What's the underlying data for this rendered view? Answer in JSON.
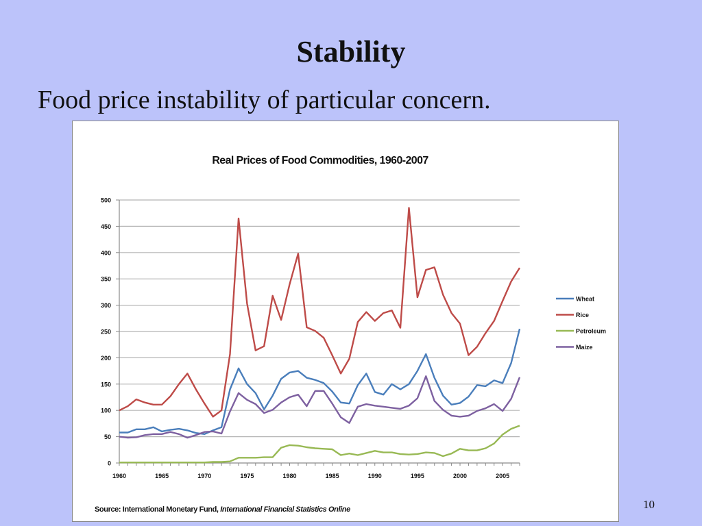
{
  "slide": {
    "title": "Stability",
    "subtitle": "Food price instability of particular concern.",
    "page_number": "10"
  },
  "chart_data": {
    "type": "line",
    "title": "Real Prices of Food Commodities, 1960-2007",
    "source_prefix": "Source: International Monetary Fund, ",
    "source_italic": "International Financial Statistics Online",
    "xlabel": "",
    "ylabel": "",
    "xlim": [
      1960,
      2007
    ],
    "ylim": [
      0,
      500
    ],
    "yticks": [
      0,
      50,
      100,
      150,
      200,
      250,
      300,
      350,
      400,
      450,
      500
    ],
    "xticks": [
      1960,
      1965,
      1970,
      1975,
      1980,
      1985,
      1990,
      1995,
      2000,
      2005
    ],
    "grid": true,
    "legend_position": "right",
    "x": [
      1960,
      1961,
      1962,
      1963,
      1964,
      1965,
      1966,
      1967,
      1968,
      1969,
      1970,
      1971,
      1972,
      1973,
      1974,
      1975,
      1976,
      1977,
      1978,
      1979,
      1980,
      1981,
      1982,
      1983,
      1984,
      1985,
      1986,
      1987,
      1988,
      1989,
      1990,
      1991,
      1992,
      1993,
      1994,
      1995,
      1996,
      1997,
      1998,
      1999,
      2000,
      2001,
      2002,
      2003,
      2004,
      2005,
      2006,
      2007
    ],
    "series": [
      {
        "name": "Wheat",
        "color": "#4a7ebb",
        "values": [
          58,
          58,
          64,
          64,
          68,
          60,
          63,
          65,
          62,
          57,
          55,
          62,
          68,
          140,
          180,
          150,
          133,
          102,
          128,
          160,
          172,
          175,
          162,
          158,
          152,
          136,
          115,
          113,
          148,
          170,
          135,
          130,
          150,
          140,
          150,
          175,
          207,
          162,
          128,
          111,
          114,
          126,
          148,
          146,
          157,
          152,
          190,
          255
        ]
      },
      {
        "name": "Rice",
        "color": "#be4b48",
        "values": [
          100,
          108,
          121,
          115,
          111,
          111,
          127,
          150,
          170,
          140,
          113,
          88,
          100,
          207,
          465,
          303,
          214,
          222,
          318,
          272,
          340,
          398,
          258,
          251,
          238,
          205,
          170,
          198,
          268,
          287,
          270,
          285,
          290,
          257,
          485,
          315,
          367,
          372,
          320,
          285,
          265,
          205,
          221,
          247,
          270,
          308,
          345,
          371
        ]
      },
      {
        "name": "Petroleum",
        "color": "#98b954",
        "values": [
          1,
          1,
          1,
          1,
          1,
          1,
          1,
          1,
          1,
          1,
          1,
          2,
          2,
          3,
          10,
          10,
          10,
          11,
          11,
          29,
          34,
          33,
          30,
          28,
          27,
          26,
          15,
          18,
          15,
          19,
          23,
          20,
          20,
          17,
          16,
          17,
          20,
          19,
          13,
          18,
          27,
          24,
          24,
          28,
          37,
          54,
          65,
          71
        ]
      },
      {
        "name": "Maize",
        "color": "#7d60a0",
        "values": [
          50,
          48,
          49,
          53,
          55,
          55,
          59,
          55,
          48,
          53,
          59,
          60,
          56,
          98,
          133,
          120,
          112,
          95,
          101,
          115,
          125,
          130,
          108,
          137,
          137,
          113,
          87,
          76,
          107,
          112,
          109,
          107,
          105,
          103,
          109,
          123,
          165,
          118,
          101,
          90,
          88,
          90,
          99,
          104,
          112,
          99,
          122,
          163
        ]
      }
    ]
  }
}
